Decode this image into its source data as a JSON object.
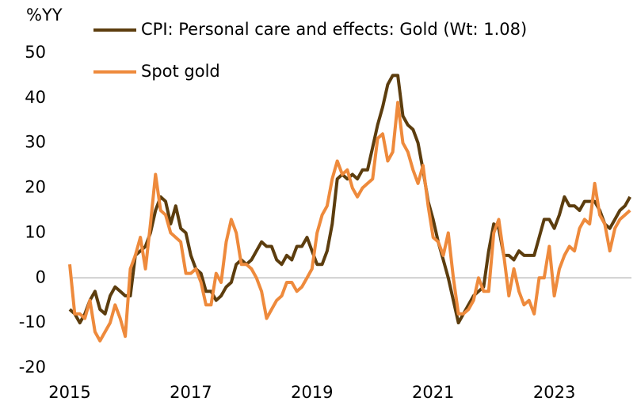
{
  "chart_data": {
    "type": "line",
    "y_label": "%YY",
    "x": [
      2015,
      2015.083,
      2015.167,
      2015.25,
      2015.333,
      2015.417,
      2015.5,
      2015.583,
      2015.667,
      2015.75,
      2015.833,
      2015.917,
      2016,
      2016.083,
      2016.167,
      2016.25,
      2016.333,
      2016.417,
      2016.5,
      2016.583,
      2016.667,
      2016.75,
      2016.833,
      2016.917,
      2017,
      2017.083,
      2017.167,
      2017.25,
      2017.333,
      2017.417,
      2017.5,
      2017.583,
      2017.667,
      2017.75,
      2017.833,
      2017.917,
      2018,
      2018.083,
      2018.167,
      2018.25,
      2018.333,
      2018.417,
      2018.5,
      2018.583,
      2018.667,
      2018.75,
      2018.833,
      2018.917,
      2019,
      2019.083,
      2019.167,
      2019.25,
      2019.333,
      2019.417,
      2019.5,
      2019.583,
      2019.667,
      2019.75,
      2019.833,
      2019.917,
      2020,
      2020.083,
      2020.167,
      2020.25,
      2020.333,
      2020.417,
      2020.5,
      2020.583,
      2020.667,
      2020.75,
      2020.833,
      2020.917,
      2021,
      2021.083,
      2021.167,
      2021.25,
      2021.333,
      2021.417,
      2021.5,
      2021.583,
      2021.667,
      2021.75,
      2021.833,
      2021.917,
      2022,
      2022.083,
      2022.167,
      2022.25,
      2022.333,
      2022.417,
      2022.5,
      2022.583,
      2022.667,
      2022.75,
      2022.833,
      2022.917,
      2023,
      2023.083,
      2023.167,
      2023.25,
      2023.333,
      2023.417,
      2023.5,
      2023.583,
      2023.667,
      2023.75,
      2023.833,
      2023.917,
      2024,
      2024.083,
      2024.167,
      2024.25
    ],
    "series": [
      {
        "name": "CPI: Personal care and effects: Gold (Wt: 1.08)",
        "color": "#5c3d0e",
        "values": [
          -7,
          -8,
          -10,
          -8,
          -5,
          -3,
          -7,
          -8,
          -4,
          -2,
          -3,
          -4,
          -4,
          5,
          6,
          7,
          10,
          15,
          18,
          17,
          12,
          16,
          11,
          10,
          5,
          2,
          1,
          -3,
          -3,
          -5,
          -4,
          -2,
          -1,
          3,
          4,
          3,
          4,
          6,
          8,
          7,
          7,
          4,
          3,
          5,
          4,
          7,
          7,
          9,
          6,
          3,
          3,
          6,
          12,
          22,
          23,
          22,
          23,
          22,
          24,
          24,
          29,
          34,
          38,
          43,
          45,
          45,
          36,
          34,
          33,
          30,
          24,
          17,
          13,
          8,
          4,
          0,
          -5,
          -10,
          -8,
          -6,
          -4,
          -3,
          -2,
          6,
          12,
          11,
          5,
          5,
          4,
          6,
          5,
          5,
          5,
          9,
          13,
          13,
          11,
          14,
          18,
          16,
          16,
          15,
          17,
          17,
          17,
          15,
          12,
          11,
          13,
          15,
          16,
          18
        ]
      },
      {
        "name": "Spot gold",
        "color": "#ee8a3c",
        "values": [
          3,
          -8,
          -8,
          -9,
          -5,
          -12,
          -14,
          -12,
          -10,
          -6,
          -9,
          -13,
          2,
          5,
          9,
          2,
          12,
          23,
          15,
          14,
          10,
          9,
          8,
          1,
          1,
          2,
          -1,
          -6,
          -6,
          1,
          -1,
          8,
          13,
          10,
          3,
          3,
          2,
          0,
          -3,
          -9,
          -7,
          -5,
          -4,
          -1,
          -1,
          -3,
          -2,
          0,
          2,
          10,
          14,
          16,
          22,
          26,
          23,
          24,
          20,
          18,
          20,
          21,
          22,
          31,
          32,
          26,
          28,
          39,
          30,
          28,
          24,
          21,
          25,
          16,
          9,
          8,
          5,
          10,
          0,
          -8,
          -8,
          -7,
          -5,
          0,
          -3,
          -3,
          10,
          13,
          5,
          -4,
          2,
          -3,
          -6,
          -5,
          -8,
          0,
          0,
          7,
          -4,
          2,
          5,
          7,
          6,
          11,
          13,
          12,
          21,
          14,
          12,
          6,
          11,
          13,
          14,
          15
        ]
      }
    ],
    "xlim": [
      2015,
      2024.3
    ],
    "xticks": [
      2015,
      2017,
      2019,
      2021,
      2023
    ],
    "ylim": [
      -20,
      50
    ],
    "yticks": [
      -20,
      -10,
      0,
      10,
      20,
      30,
      40,
      50
    ],
    "grid": false
  }
}
